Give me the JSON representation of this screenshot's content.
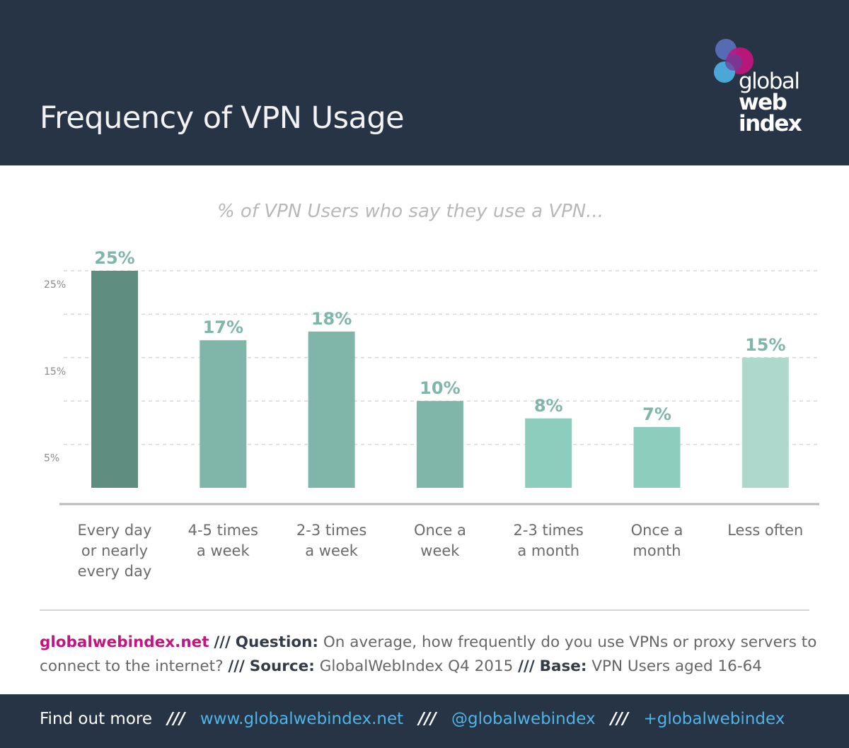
{
  "header": {
    "title": "Frequency of VPN Usage",
    "logo": {
      "line1": "global",
      "line2": "web",
      "line3": "index"
    }
  },
  "chart_data": {
    "type": "bar",
    "title": "% of VPN Users who say they use a VPN...",
    "categories": [
      [
        "Every day",
        "or nearly",
        "every day"
      ],
      [
        "4-5 times",
        "a week"
      ],
      [
        "2-3 times",
        "a week"
      ],
      [
        "Once a",
        "week"
      ],
      [
        "2-3 times",
        "a month"
      ],
      [
        "Once a",
        "month"
      ],
      [
        "Less often"
      ]
    ],
    "values": [
      25,
      17,
      18,
      10,
      8,
      7,
      15
    ],
    "data_labels": [
      "25%",
      "17%",
      "18%",
      "10%",
      "8%",
      "7%",
      "15%"
    ],
    "bar_colors": [
      "#5f8e80",
      "#80b6a9",
      "#80b6a9",
      "#80b6a9",
      "#8dcdbd",
      "#8dcdbd",
      "#afd8cd"
    ],
    "label_color": "#80b6a9",
    "ytick_labels": [
      {
        "value": 25,
        "label": "25%"
      },
      {
        "value": 15,
        "label": "15%"
      },
      {
        "value": 5,
        "label": "5%"
      }
    ],
    "gridlines": [
      5,
      10,
      15,
      20,
      25
    ],
    "ylim": [
      0,
      25
    ],
    "grid": true
  },
  "footer_note": {
    "brand": "globalwebindex.net",
    "sep": "///",
    "question_label": "Question:",
    "question_text": "On average, how frequently do you use VPNs or proxy servers to connect to the internet?",
    "source_label": "Source:",
    "source_text": "GlobalWebIndex Q4 2015",
    "base_label": "Base:",
    "base_text": "VPN Users aged 16-64"
  },
  "bottom_bar": {
    "find_out": "Find out more",
    "sep": "///",
    "website": "www.globalwebindex.net",
    "twitter": "@globalwebindex",
    "gplus": "+globalwebindex"
  },
  "colors": {
    "header_bg": "#273445",
    "brand_pink": "#c4157f",
    "link_blue": "#4fb4e6"
  }
}
